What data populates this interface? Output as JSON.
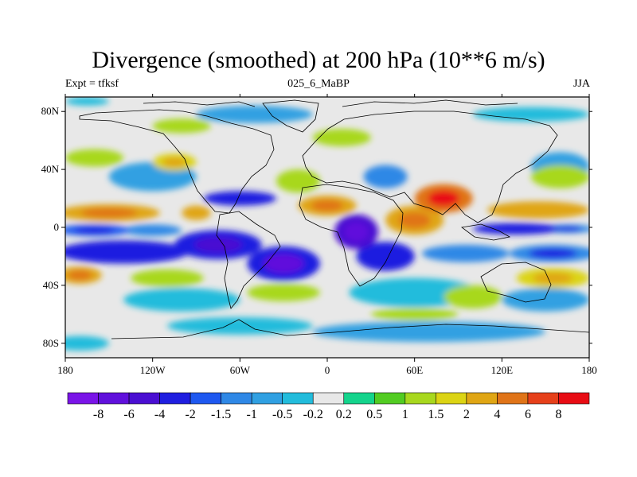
{
  "chart_data": {
    "type": "heatmap",
    "title": "Divergence (smoothed) at 200 hPa (10**6 m/s)",
    "subtitle_left": "Expt = tfksf",
    "subtitle_center": "025_6_MaBP",
    "subtitle_right": "JJA",
    "x_range": [
      -180,
      180
    ],
    "y_range": [
      -90,
      90
    ],
    "x_ticks": [
      {
        "value": -180,
        "label": "180"
      },
      {
        "value": -120,
        "label": "120W"
      },
      {
        "value": -60,
        "label": "60W"
      },
      {
        "value": 0,
        "label": "0"
      },
      {
        "value": 60,
        "label": "60E"
      },
      {
        "value": 120,
        "label": "120E"
      },
      {
        "value": 180,
        "label": "180"
      }
    ],
    "y_ticks": [
      {
        "value": 80,
        "label": "80N"
      },
      {
        "value": 40,
        "label": "40N"
      },
      {
        "value": 0,
        "label": "0"
      },
      {
        "value": -40,
        "label": "40S"
      },
      {
        "value": -80,
        "label": "80S"
      }
    ],
    "colorbar": {
      "colors": [
        "#7a14e8",
        "#6010dc",
        "#4a0ed2",
        "#1f1ee0",
        "#1e58f0",
        "#2f88e6",
        "#30a0e2",
        "#22bcdc",
        "#e8e8e8",
        "#14d48c",
        "#52cc22",
        "#a8d81e",
        "#dcd414",
        "#e0a614",
        "#e07418",
        "#e6401a",
        "#e80c14"
      ],
      "labels": [
        "-8",
        "-6",
        "-4",
        "-2",
        "-1.5",
        "-1",
        "-0.5",
        "-0.2",
        "0.2",
        "0.5",
        "1",
        "1.5",
        "2",
        "4",
        "6",
        "8"
      ]
    },
    "blobs": [
      {
        "lon": -160,
        "lat": -2,
        "rx": 25,
        "ry": 4,
        "value": -1.8
      },
      {
        "lon": -120,
        "lat": -2,
        "rx": 20,
        "ry": 4,
        "value": -1.2
      },
      {
        "lon": 130,
        "lat": -1,
        "rx": 30,
        "ry": 4,
        "value": -2.5
      },
      {
        "lon": 165,
        "lat": -1,
        "rx": 18,
        "ry": 3,
        "value": -1.5
      },
      {
        "lon": -140,
        "lat": -17,
        "rx": 45,
        "ry": 8,
        "value": -2.5
      },
      {
        "lon": -75,
        "lat": -12,
        "rx": 30,
        "ry": 10,
        "value": -3
      },
      {
        "lon": -30,
        "lat": -25,
        "rx": 25,
        "ry": 12,
        "value": -4
      },
      {
        "lon": 20,
        "lat": -3,
        "rx": 15,
        "ry": 12,
        "value": -5
      },
      {
        "lon": 40,
        "lat": -20,
        "rx": 20,
        "ry": 10,
        "value": -2.5
      },
      {
        "lon": 95,
        "lat": -18,
        "rx": 30,
        "ry": 6,
        "value": -1.2
      },
      {
        "lon": 155,
        "lat": -18,
        "rx": 30,
        "ry": 6,
        "value": -1.5
      },
      {
        "lon": -60,
        "lat": 20,
        "rx": 25,
        "ry": 5,
        "value": -2.5
      },
      {
        "lon": -120,
        "lat": 35,
        "rx": 30,
        "ry": 10,
        "value": -0.8
      },
      {
        "lon": 40,
        "lat": 35,
        "rx": 15,
        "ry": 8,
        "value": -1.2
      },
      {
        "lon": 160,
        "lat": 42,
        "rx": 20,
        "ry": 10,
        "value": -0.8
      },
      {
        "lon": 60,
        "lat": -45,
        "rx": 45,
        "ry": 10,
        "value": -0.5
      },
      {
        "lon": -100,
        "lat": -50,
        "rx": 40,
        "ry": 8,
        "value": -0.5
      },
      {
        "lon": 150,
        "lat": -50,
        "rx": 30,
        "ry": 8,
        "value": -0.6
      },
      {
        "lon": -60,
        "lat": -68,
        "rx": 50,
        "ry": 6,
        "value": -0.5
      },
      {
        "lon": 70,
        "lat": -72,
        "rx": 80,
        "ry": 7,
        "value": -0.6
      },
      {
        "lon": -170,
        "lat": -80,
        "rx": 20,
        "ry": 5,
        "value": -0.5
      },
      {
        "lon": -50,
        "lat": 78,
        "rx": 40,
        "ry": 6,
        "value": -0.6
      },
      {
        "lon": 140,
        "lat": 78,
        "rx": 40,
        "ry": 5,
        "value": -0.5
      },
      {
        "lon": -165,
        "lat": 87,
        "rx": 15,
        "ry": 3,
        "value": -0.5
      },
      {
        "lon": -150,
        "lat": 10,
        "rx": 35,
        "ry": 6,
        "value": 2.5
      },
      {
        "lon": 145,
        "lat": 12,
        "rx": 35,
        "ry": 6,
        "value": 2.2
      },
      {
        "lon": 0,
        "lat": 15,
        "rx": 20,
        "ry": 7,
        "value": 3
      },
      {
        "lon": 80,
        "lat": 20,
        "rx": 20,
        "ry": 10,
        "value": 5.5
      },
      {
        "lon": 60,
        "lat": 5,
        "rx": 20,
        "ry": 10,
        "value": 3
      },
      {
        "lon": -90,
        "lat": 10,
        "rx": 10,
        "ry": 5,
        "value": 2
      },
      {
        "lon": -170,
        "lat": -33,
        "rx": 15,
        "ry": 6,
        "value": 2.5
      },
      {
        "lon": -110,
        "lat": -35,
        "rx": 25,
        "ry": 6,
        "value": 1.2
      },
      {
        "lon": -30,
        "lat": -45,
        "rx": 25,
        "ry": 6,
        "value": 1.2
      },
      {
        "lon": -20,
        "lat": 32,
        "rx": 15,
        "ry": 8,
        "value": 1.3
      },
      {
        "lon": -105,
        "lat": 45,
        "rx": 15,
        "ry": 6,
        "value": 1.5
      },
      {
        "lon": 160,
        "lat": 35,
        "rx": 20,
        "ry": 8,
        "value": 1.3
      },
      {
        "lon": 100,
        "lat": -48,
        "rx": 20,
        "ry": 8,
        "value": 1.4
      },
      {
        "lon": -100,
        "lat": 70,
        "rx": 20,
        "ry": 5,
        "value": 1
      },
      {
        "lon": 10,
        "lat": 62,
        "rx": 20,
        "ry": 6,
        "value": 1
      },
      {
        "lon": -160,
        "lat": 48,
        "rx": 20,
        "ry": 6,
        "value": 1.1
      },
      {
        "lon": 155,
        "lat": -35,
        "rx": 25,
        "ry": 7,
        "value": 1.6
      },
      {
        "lon": 60,
        "lat": -60,
        "rx": 30,
        "ry": 4,
        "value": 1.2
      }
    ]
  }
}
